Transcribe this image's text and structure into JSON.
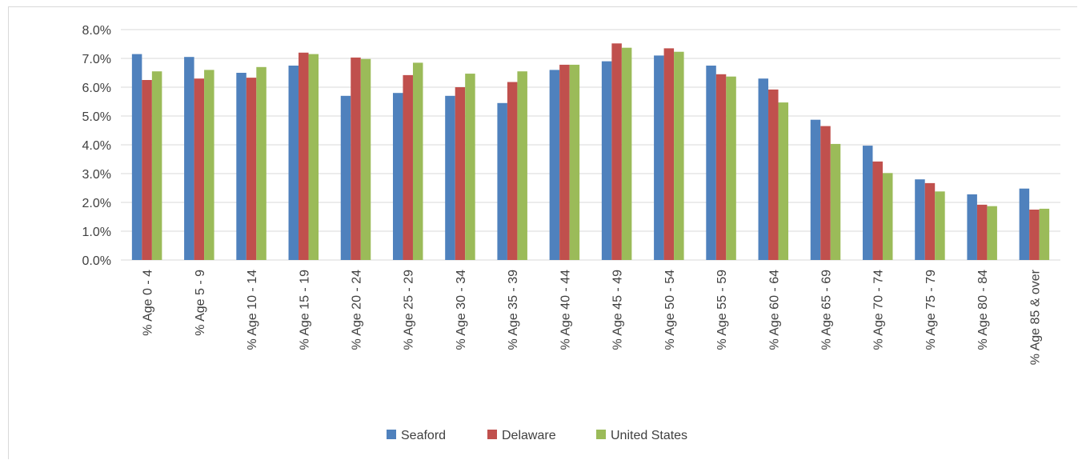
{
  "colors": {
    "Seaford": "#4f81bd",
    "Delaware": "#c0504d",
    "United States": "#9bbb59",
    "grid": "#d9d9d9",
    "axis_text": "#404040"
  },
  "chart_data": {
    "type": "bar",
    "title": "",
    "xlabel": "",
    "ylabel": "",
    "ylim": [
      0,
      8
    ],
    "yticks": [
      0,
      1,
      2,
      3,
      4,
      5,
      6,
      7,
      8
    ],
    "ytick_labels": [
      "0.0%",
      "1.0%",
      "2.0%",
      "3.0%",
      "4.0%",
      "5.0%",
      "6.0%",
      "7.0%",
      "8.0%"
    ],
    "grid": true,
    "legend_position": "bottom",
    "categories": [
      "% Age 0 - 4",
      "% Age 5 - 9",
      "% Age 10 - 14",
      "% Age 15 - 19",
      "% Age 20 - 24",
      "% Age 25 - 29",
      "% Age 30 - 34",
      "% Age 35 - 39",
      "% Age 40 - 44",
      "% Age 45 - 49",
      "% Age 50 - 54",
      "% Age 55 - 59",
      "% Age 60 - 64",
      "% Age 65 - 69",
      "% Age 70 - 74",
      "% Age 75 - 79",
      "% Age 80 - 84",
      "% Age 85 & over"
    ],
    "series": [
      {
        "name": "Seaford",
        "values": [
          7.15,
          7.05,
          6.5,
          6.75,
          5.7,
          5.8,
          5.7,
          5.45,
          6.6,
          6.9,
          7.1,
          6.75,
          6.3,
          4.87,
          3.97,
          2.8,
          2.28,
          2.48
        ]
      },
      {
        "name": "Delaware",
        "values": [
          6.25,
          6.3,
          6.33,
          7.2,
          7.03,
          6.42,
          6.0,
          6.18,
          6.78,
          7.52,
          7.35,
          6.45,
          5.92,
          4.65,
          3.42,
          2.67,
          1.92,
          1.75
        ]
      },
      {
        "name": "United States",
        "values": [
          6.55,
          6.6,
          6.7,
          7.15,
          6.98,
          6.85,
          6.47,
          6.55,
          6.78,
          7.37,
          7.23,
          6.37,
          5.47,
          4.03,
          3.02,
          2.38,
          1.87,
          1.78
        ]
      }
    ]
  }
}
